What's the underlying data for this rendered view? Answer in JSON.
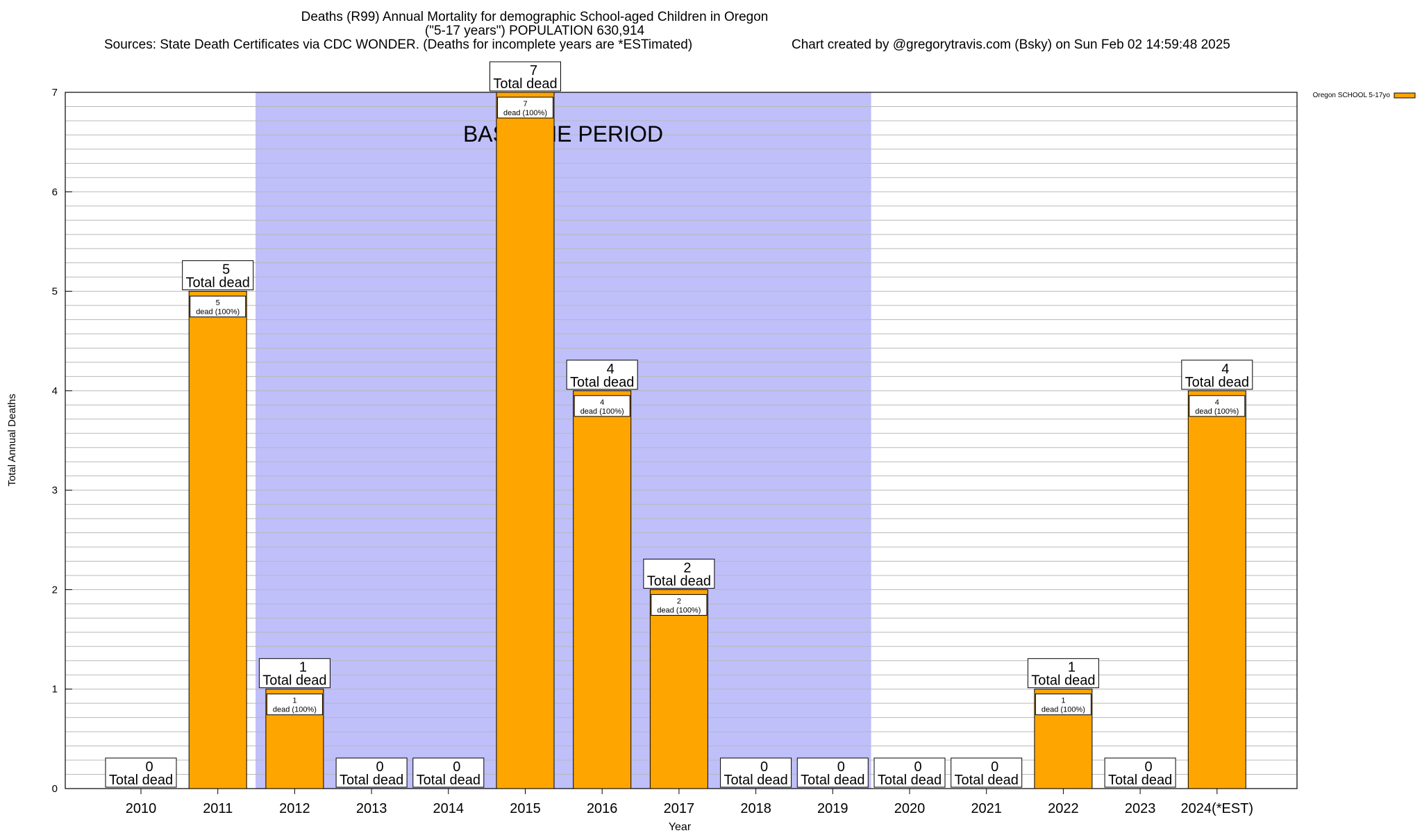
{
  "header": {
    "title_line1": "Deaths (R99) Annual Mortality for demographic School-aged Children in Oregon",
    "title_line2": "(\"5-17 years\") POPULATION 630,914",
    "sources": "Sources: State Death Certificates via CDC WONDER. (Deaths for incomplete years are *ESTimated)",
    "credit": "Chart created by @gregorytravis.com (Bsky) on Sun Feb 02 14:59:48 2025"
  },
  "chart_data": {
    "type": "bar",
    "xlabel": "Year",
    "ylabel": "Total Annual Deaths",
    "ylim": [
      0,
      7
    ],
    "y_ticks": [
      "0",
      "1",
      "2",
      "3",
      "4",
      "5",
      "6",
      "7"
    ],
    "categories": [
      "2010",
      "2011",
      "2012",
      "2013",
      "2014",
      "2015",
      "2016",
      "2017",
      "2018",
      "2019",
      "2020",
      "2021",
      "2022",
      "2023",
      "2024(*EST)"
    ],
    "series": [
      {
        "name": "Oregon SCHOOL 5-17yo",
        "color": "#ffa500",
        "values": [
          0,
          5,
          1,
          0,
          0,
          7,
          4,
          2,
          0,
          0,
          0,
          0,
          1,
          0,
          4
        ]
      }
    ],
    "total_label_suffix": "Total dead",
    "inner_label_suffix": "dead (100%)",
    "baseline_period": {
      "label": "BASELINE PERIOD",
      "from_category": "2012",
      "to_category": "2019",
      "color": "#bfbffa"
    },
    "grid": true,
    "legend_position": "top-right"
  }
}
